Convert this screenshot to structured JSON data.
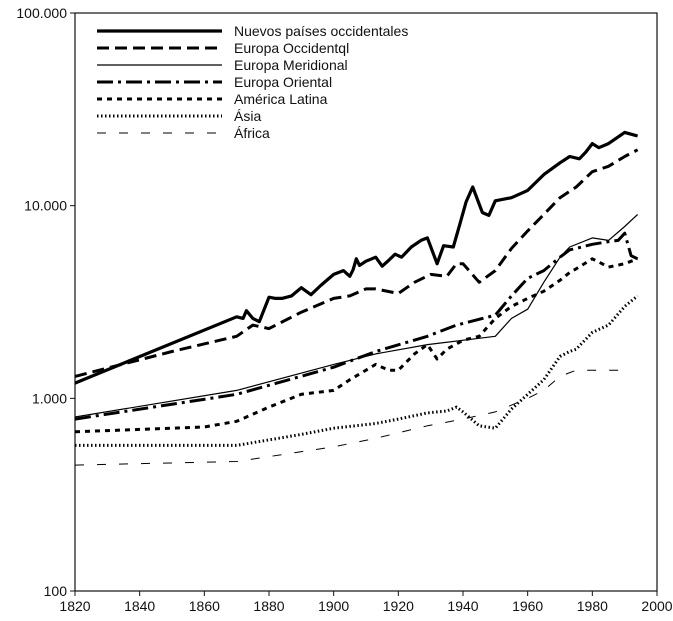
{
  "chart_data": {
    "type": "line",
    "title": "",
    "xlabel": "",
    "ylabel": "",
    "xlim": [
      1820,
      2000
    ],
    "ylim": [
      100,
      100000
    ],
    "yscale": "log",
    "grid": false,
    "legend_position": "top-left",
    "x_ticks": [
      1820,
      1840,
      1860,
      1880,
      1900,
      1920,
      1940,
      1960,
      1980,
      2000
    ],
    "x_tick_labels": [
      "1820",
      "1840",
      "1860",
      "1880",
      "1900",
      "1920",
      "1940",
      "1960",
      "1980",
      "2000"
    ],
    "y_ticks": [
      100,
      1000,
      10000,
      100000
    ],
    "y_tick_labels": [
      "100",
      "1.000",
      "10.000",
      "100.000"
    ],
    "series": [
      {
        "name": "Nuevos países occidentales",
        "line_style": "solid-thick",
        "x": [
          1820,
          1870,
          1872,
          1873,
          1875,
          1877,
          1880,
          1882,
          1884,
          1887,
          1890,
          1893,
          1896,
          1900,
          1903,
          1905,
          1906,
          1907,
          1908,
          1910,
          1913,
          1915,
          1917,
          1919,
          1921,
          1924,
          1927,
          1929,
          1932,
          1934,
          1937,
          1939,
          1941,
          1943,
          1946,
          1948,
          1950,
          1955,
          1960,
          1965,
          1970,
          1973,
          1976,
          1978,
          1980,
          1982,
          1985,
          1990,
          1994
        ],
        "y": [
          1200,
          2650,
          2600,
          2850,
          2600,
          2500,
          3350,
          3300,
          3300,
          3400,
          3750,
          3450,
          3850,
          4400,
          4600,
          4300,
          4650,
          5300,
          4900,
          5150,
          5400,
          4850,
          5200,
          5600,
          5400,
          6100,
          6600,
          6800,
          5000,
          6200,
          6100,
          8000,
          10500,
          12500,
          9200,
          8900,
          10600,
          11000,
          12000,
          14500,
          16700,
          18000,
          17500,
          19000,
          21000,
          20000,
          21000,
          24000,
          23000
        ]
      },
      {
        "name": "Europa Occidentql",
        "line_style": "dashed-thick",
        "x": [
          1820,
          1850,
          1870,
          1875,
          1880,
          1890,
          1900,
          1905,
          1910,
          1913,
          1920,
          1925,
          1930,
          1935,
          1938,
          1940,
          1945,
          1950,
          1955,
          1960,
          1965,
          1970,
          1975,
          1980,
          1985,
          1990,
          1994
        ],
        "y": [
          1300,
          1750,
          2100,
          2400,
          2300,
          2800,
          3300,
          3400,
          3700,
          3700,
          3500,
          4000,
          4400,
          4300,
          5000,
          5000,
          4000,
          4600,
          6000,
          7400,
          9000,
          11000,
          12500,
          15000,
          16000,
          18000,
          19500
        ]
      },
      {
        "name": "Europa Meridional",
        "line_style": "solid-thin",
        "x": [
          1820,
          1870,
          1900,
          1913,
          1929,
          1950,
          1955,
          1960,
          1965,
          1970,
          1973,
          1980,
          1985,
          1990,
          1994
        ],
        "y": [
          800,
          1100,
          1500,
          1700,
          1900,
          2100,
          2600,
          2900,
          4000,
          5400,
          6100,
          6800,
          6600,
          7800,
          9000
        ]
      },
      {
        "name": "Europa Oriental",
        "line_style": "dash-dot-thick",
        "x": [
          1820,
          1870,
          1900,
          1913,
          1929,
          1938,
          1950,
          1955,
          1960,
          1965,
          1970,
          1973,
          1975,
          1980,
          1985,
          1988,
          1990,
          1992,
          1994
        ],
        "y": [
          780,
          1050,
          1450,
          1750,
          2100,
          2400,
          2700,
          3400,
          4200,
          4600,
          5400,
          5900,
          6000,
          6300,
          6500,
          6600,
          7200,
          5500,
          5300
        ]
      },
      {
        "name": "América Latina",
        "line_style": "dashed-short",
        "x": [
          1820,
          1830,
          1840,
          1850,
          1860,
          1870,
          1880,
          1890,
          1900,
          1905,
          1910,
          1913,
          1917,
          1920,
          1925,
          1929,
          1932,
          1935,
          1940,
          1945,
          1950,
          1955,
          1960,
          1965,
          1970,
          1973,
          1975,
          1980,
          1982,
          1985,
          1990,
          1994
        ],
        "y": [
          670,
          680,
          690,
          700,
          710,
          760,
          900,
          1050,
          1100,
          1250,
          1400,
          1500,
          1400,
          1400,
          1700,
          1900,
          1600,
          1800,
          2000,
          2100,
          2600,
          3000,
          3300,
          3600,
          4100,
          4500,
          4700,
          5300,
          5100,
          4800,
          5000,
          5300
        ]
      },
      {
        "name": "Ásia",
        "line_style": "dotted-thick",
        "x": [
          1820,
          1870,
          1890,
          1900,
          1913,
          1920,
          1929,
          1935,
          1938,
          1940,
          1945,
          1950,
          1955,
          1960,
          1965,
          1970,
          1973,
          1975,
          1980,
          1985,
          1990,
          1994
        ],
        "y": [
          570,
          570,
          650,
          700,
          740,
          780,
          840,
          860,
          900,
          850,
          720,
          700,
          880,
          1050,
          1250,
          1650,
          1750,
          1800,
          2200,
          2400,
          3000,
          3400
        ]
      },
      {
        "name": "África",
        "line_style": "dashed-thin-sparse",
        "x": [
          1820,
          1870,
          1900,
          1913,
          1929,
          1940,
          1950,
          1960,
          1965,
          1970,
          1975,
          1980,
          1992
        ],
        "y": [
          450,
          470,
          560,
          620,
          720,
          780,
          850,
          1000,
          1100,
          1300,
          1400,
          1400,
          1400
        ]
      }
    ]
  }
}
